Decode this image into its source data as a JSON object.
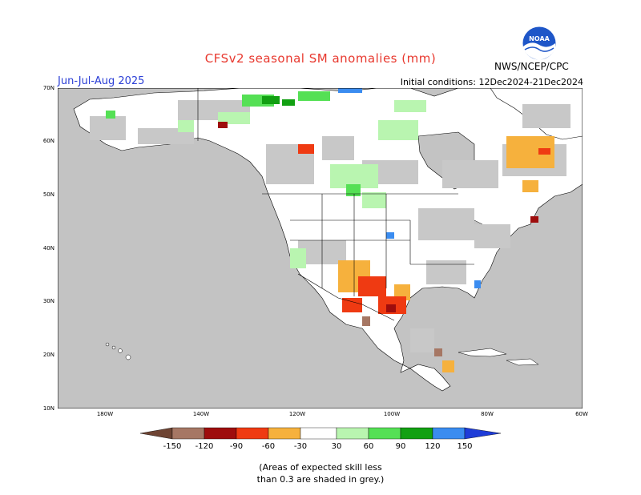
{
  "title": "CFSv2 seasonal SM anomalies (mm)",
  "season": "Jun-Jul-Aug 2025",
  "initial_conditions": "Initial conditions: 12Dec2024-21Dec2024",
  "agency": "NWS/NCEP/CPC",
  "logo_text": "NOAA",
  "map": {
    "lat_labels": [
      "70N",
      "60N",
      "50N",
      "40N",
      "30N",
      "20N",
      "10N"
    ],
    "lon_labels": [
      "180W",
      "140W",
      "120W",
      "100W",
      "80W",
      "60W"
    ]
  },
  "legend": {
    "tick_labels": [
      "-150",
      "-120",
      "-90",
      "-60",
      "-30",
      "30",
      "60",
      "90",
      "120",
      "150"
    ],
    "colors": {
      "below_-150": "#6e4433",
      "-150_-120": "#a67764",
      "-120_-90": "#9e0d0d",
      "-90_-60": "#ef3a12",
      "-60_-30": "#f6b13d",
      "-30_30": "#ffffff",
      "30_60": "#b9f5b0",
      "60_90": "#55e055",
      "90_120": "#12a012",
      "120_150": "#3a8cf0",
      "above_150": "#1e3cd8"
    }
  },
  "map_colors": {
    "ocean": "#c3c3c3",
    "land": "#ffffff",
    "low_skill": "#c8c8c8",
    "border": "#000000"
  },
  "note": {
    "line1": "(Areas of expected skill less",
    "line2": "than 0.3 are shaded in grey.)"
  }
}
